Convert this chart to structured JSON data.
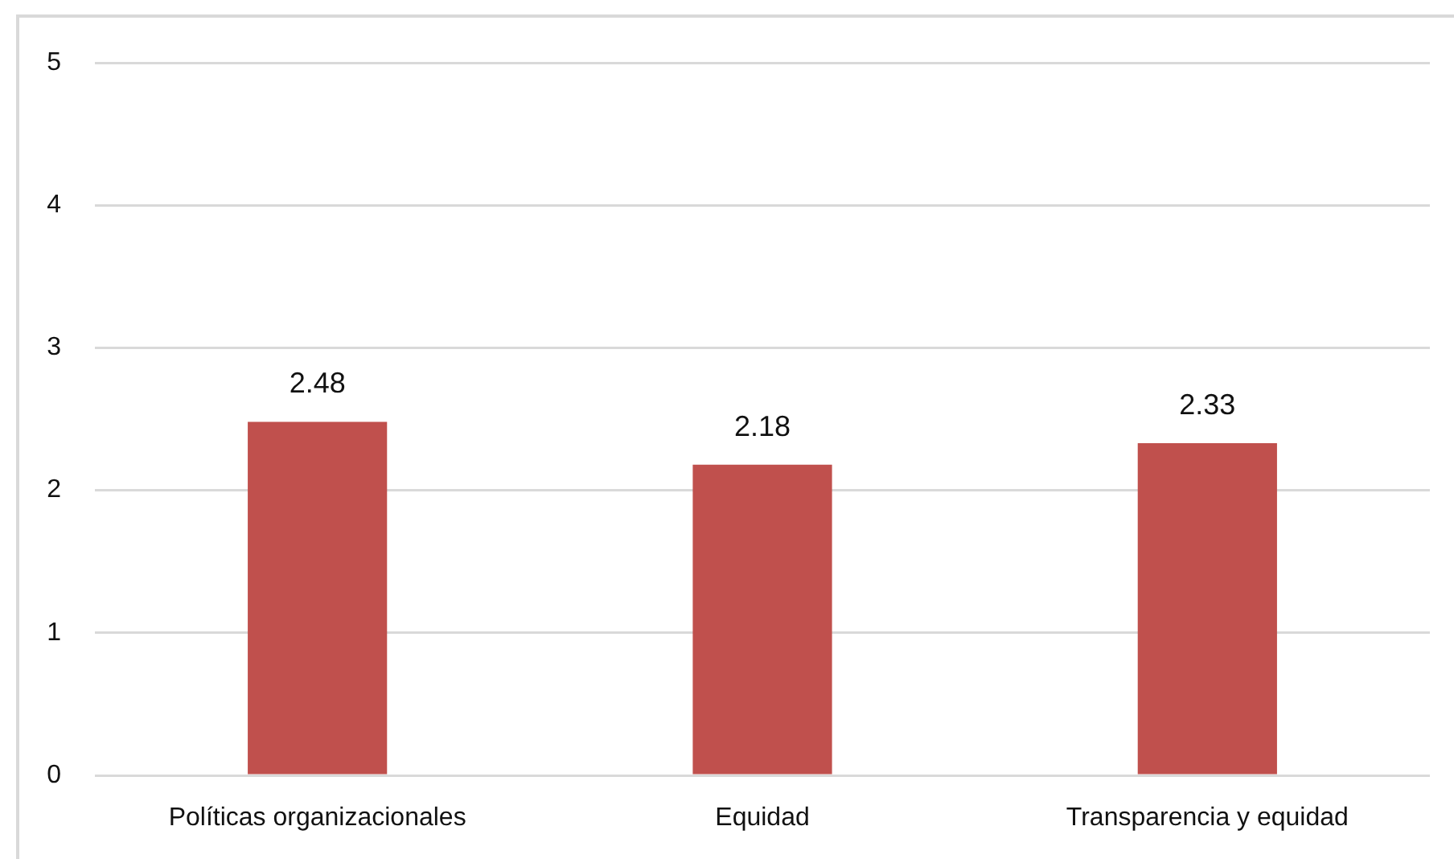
{
  "chart_data": {
    "type": "bar",
    "categories": [
      "Políticas organizacionales",
      "Equidad",
      "Transparencia y equidad"
    ],
    "values": [
      2.48,
      2.18,
      2.33
    ],
    "color": "#c0504d",
    "ylim": [
      0,
      5
    ],
    "yticks": [
      0,
      1,
      2,
      3,
      4,
      5
    ],
    "grid": "y",
    "data_labels": true
  }
}
